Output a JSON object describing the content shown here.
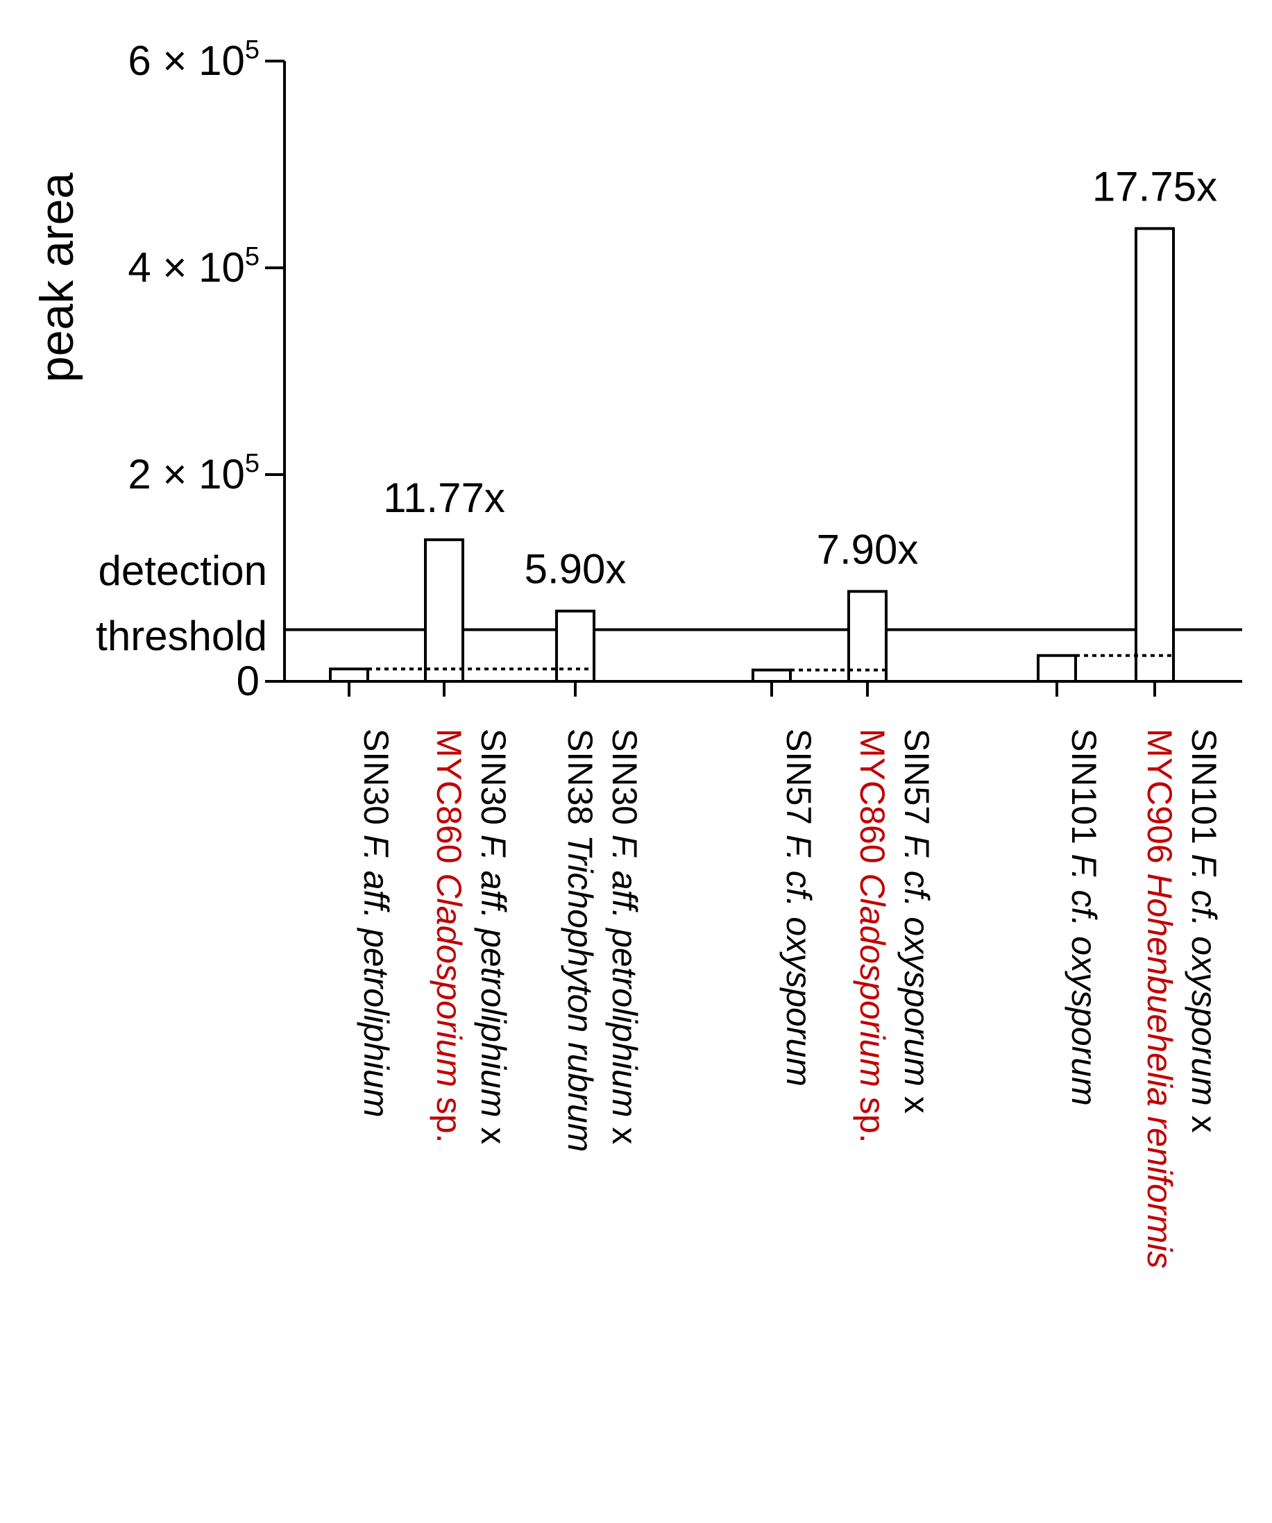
{
  "chart_data": {
    "type": "bar",
    "ylabel": "peak area",
    "ylim": [
      0,
      600000
    ],
    "y_ticks": [
      {
        "value": 0,
        "label": "0",
        "sup": ""
      },
      {
        "value": 200000,
        "label": "2 × 10",
        "sup": "5"
      },
      {
        "value": 400000,
        "label": "4 × 10",
        "sup": "5"
      },
      {
        "value": 600000,
        "label": "6 × 10",
        "sup": "5"
      }
    ],
    "threshold": {
      "value": 50000,
      "label_line1": "detection",
      "label_line2": "threshold"
    },
    "colors": {
      "bar_fill": "#ffffff",
      "bar_stroke": "#000000",
      "coculture_red": "#c00000"
    },
    "bars": [
      {
        "group": 1,
        "value": 12000,
        "fold": "",
        "baseline": null,
        "label_parts": [
          {
            "text": "SIN30 ",
            "italic": false,
            "red": false
          },
          {
            "text": "F. aff. petroliphium",
            "italic": true,
            "red": false
          }
        ]
      },
      {
        "group": 1,
        "value": 137000,
        "fold": "11.77x",
        "baseline": 12000,
        "label_parts": [
          {
            "text": "SIN30 ",
            "italic": false,
            "red": false
          },
          {
            "text": "F. aff. petroliphium",
            "italic": true,
            "red": false
          },
          {
            "text": " x",
            "italic": false,
            "red": false
          }
        ],
        "label_line2": [
          {
            "text": "MYC860 ",
            "italic": false,
            "red": true
          },
          {
            "text": "Cladosporium",
            "italic": true,
            "red": true
          },
          {
            "text": " sp.",
            "italic": false,
            "red": true
          }
        ]
      },
      {
        "group": 1,
        "value": 68000,
        "fold": "5.90x",
        "baseline": 12000,
        "label_parts": [
          {
            "text": "SIN30 ",
            "italic": false,
            "red": false
          },
          {
            "text": "F. aff. petroliphium",
            "italic": true,
            "red": false
          },
          {
            "text": " x",
            "italic": false,
            "red": false
          }
        ],
        "label_line2": [
          {
            "text": "SIN38 ",
            "italic": false,
            "red": false
          },
          {
            "text": "Trichophyton rubrum",
            "italic": true,
            "red": false
          }
        ]
      },
      {
        "group": 2,
        "value": 11000,
        "fold": "",
        "baseline": null,
        "label_parts": [
          {
            "text": "SIN57 ",
            "italic": false,
            "red": false
          },
          {
            "text": "F. cf.",
            "italic": true,
            "red": false
          },
          {
            "text": " oxysporum",
            "italic": true,
            "red": false
          }
        ]
      },
      {
        "group": 2,
        "value": 87000,
        "fold": "7.90x",
        "baseline": 11000,
        "label_parts": [
          {
            "text": "SIN57 ",
            "italic": false,
            "red": false
          },
          {
            "text": "F. cf.",
            "italic": true,
            "red": false
          },
          {
            "text": " oxysporum",
            "italic": true,
            "red": false
          },
          {
            "text": " x",
            "italic": false,
            "red": false
          }
        ],
        "label_line2": [
          {
            "text": "MYC860 ",
            "italic": false,
            "red": true
          },
          {
            "text": "Cladosporium",
            "italic": true,
            "red": true
          },
          {
            "text": " sp.",
            "italic": false,
            "red": true
          }
        ]
      },
      {
        "group": 3,
        "value": 25000,
        "fold": "",
        "baseline": null,
        "label_parts": [
          {
            "text": "SIN101 ",
            "italic": false,
            "red": false
          },
          {
            "text": "F. cf.",
            "italic": true,
            "red": false
          },
          {
            "text": " oxysporum",
            "italic": true,
            "red": false
          }
        ]
      },
      {
        "group": 3,
        "value": 438000,
        "fold": "17.75x",
        "baseline": 25000,
        "label_parts": [
          {
            "text": "SIN101 ",
            "italic": false,
            "red": false
          },
          {
            "text": "F. cf.",
            "italic": true,
            "red": false
          },
          {
            "text": " oxysporum",
            "italic": true,
            "red": false
          },
          {
            "text": " x",
            "italic": false,
            "red": false
          }
        ],
        "label_line2": [
          {
            "text": "MYC906 ",
            "italic": false,
            "red": true
          },
          {
            "text": "Hohenbuehelia reniformis",
            "italic": true,
            "red": true
          }
        ]
      }
    ]
  }
}
